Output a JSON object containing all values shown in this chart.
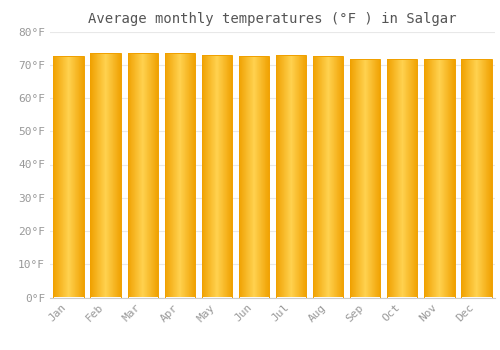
{
  "title": "Average monthly temperatures (°F ) in Salgar",
  "categories": [
    "Jan",
    "Feb",
    "Mar",
    "Apr",
    "May",
    "Jun",
    "Jul",
    "Aug",
    "Sep",
    "Oct",
    "Nov",
    "Dec"
  ],
  "values": [
    72.5,
    73.5,
    73.5,
    73.5,
    72.9,
    72.7,
    72.9,
    72.7,
    71.8,
    71.8,
    71.6,
    71.6
  ],
  "bar_color_center": "#FFD050",
  "bar_color_edge": "#F0A000",
  "background_color": "#FFFFFF",
  "grid_color": "#E8E8E8",
  "ylim": [
    0,
    80
  ],
  "yticks": [
    0,
    10,
    20,
    30,
    40,
    50,
    60,
    70,
    80
  ],
  "ytick_labels": [
    "0°F",
    "10°F",
    "20°F",
    "30°F",
    "40°F",
    "50°F",
    "60°F",
    "70°F",
    "80°F"
  ],
  "title_fontsize": 10,
  "tick_fontsize": 8,
  "font_color": "#999999",
  "bar_width": 0.82
}
